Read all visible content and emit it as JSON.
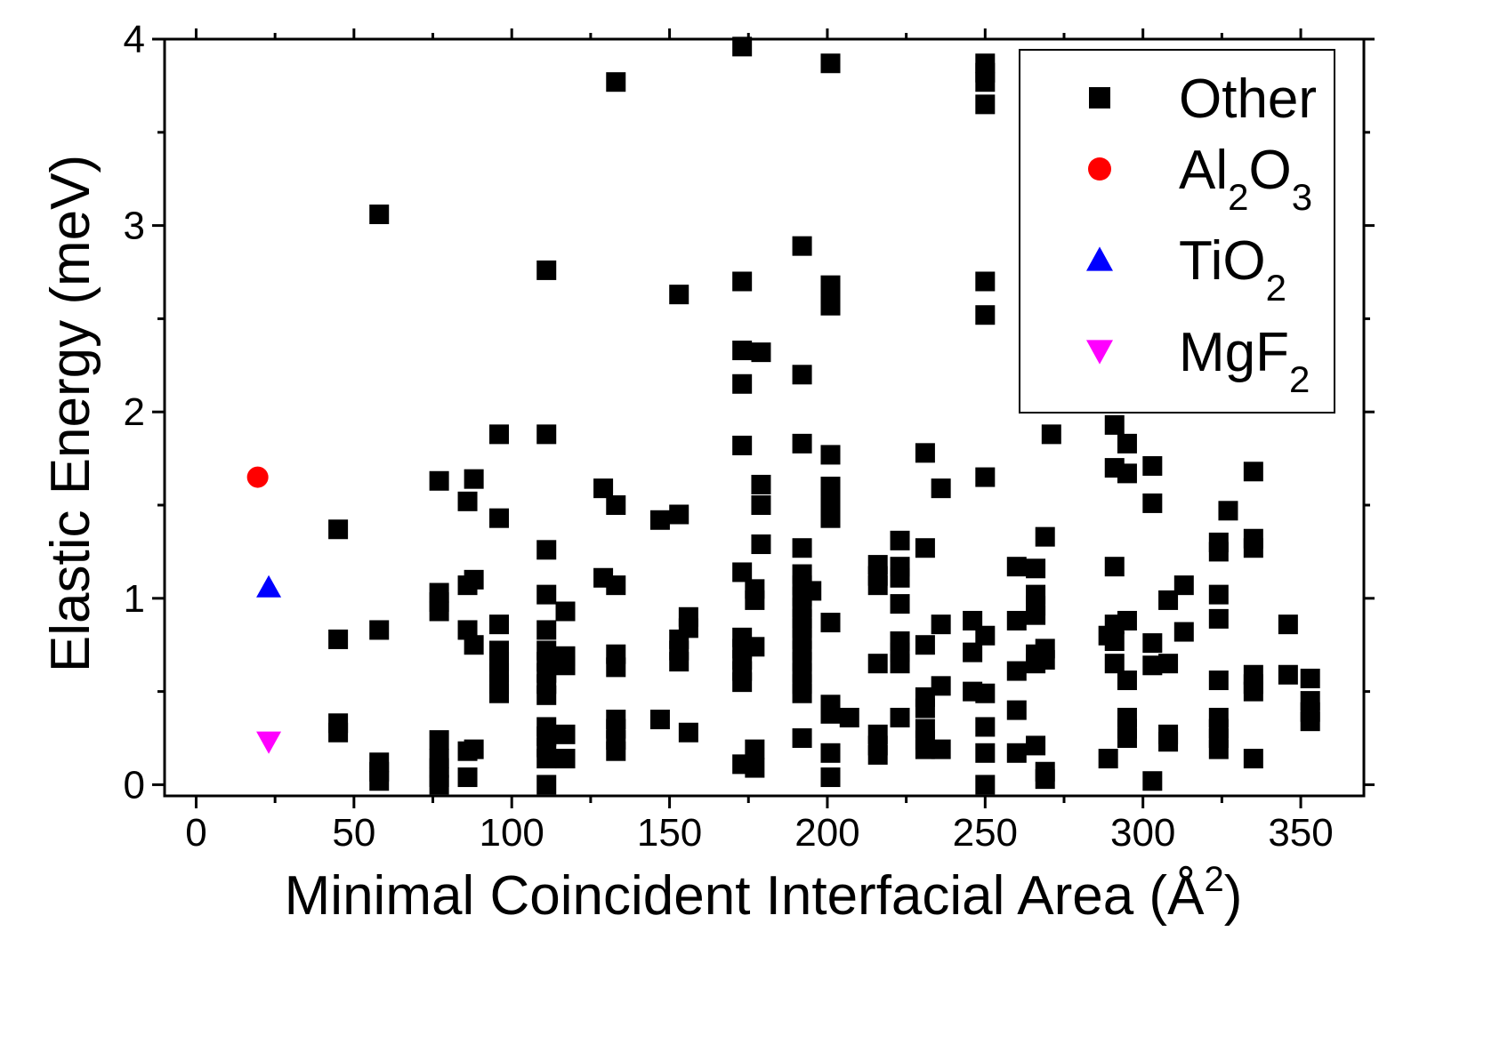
{
  "chart_data": {
    "type": "scatter",
    "xlabel": "Minimal Coincident Interfacial Area (Å",
    "xlabel_sup": "2",
    "xlabel_end": ")",
    "ylabel": "Elastic Energy (meV)",
    "xlim": [
      -10,
      370
    ],
    "ylim": [
      -0.06,
      4
    ],
    "xticks": [
      0,
      50,
      100,
      150,
      200,
      250,
      300,
      350
    ],
    "yticks": [
      0,
      1,
      2,
      3,
      4
    ],
    "grid": false,
    "legend_position": "top-right",
    "series": [
      {
        "name": "Other",
        "marker": "square",
        "color": "#000000",
        "points": [
          [
            45,
            1.37
          ],
          [
            45,
            0.78
          ],
          [
            45,
            0.33
          ],
          [
            45,
            0.28
          ],
          [
            58,
            3.06
          ],
          [
            58,
            0.83
          ],
          [
            58,
            0.12
          ],
          [
            58,
            0.07
          ],
          [
            58,
            0.02
          ],
          [
            77,
            1.63
          ],
          [
            77,
            1.03
          ],
          [
            77,
            0.98
          ],
          [
            77,
            0.93
          ],
          [
            77,
            0.24
          ],
          [
            77,
            0.14
          ],
          [
            77,
            0.09
          ],
          [
            77,
            0.04
          ],
          [
            77,
            0.0
          ],
          [
            86,
            1.52
          ],
          [
            86,
            1.07
          ],
          [
            86,
            0.83
          ],
          [
            86,
            0.18
          ],
          [
            86,
            0.04
          ],
          [
            88,
            1.64
          ],
          [
            88,
            1.1
          ],
          [
            88,
            0.75
          ],
          [
            88,
            0.19
          ],
          [
            96,
            1.88
          ],
          [
            96,
            1.43
          ],
          [
            96,
            0.86
          ],
          [
            96,
            0.72
          ],
          [
            96,
            0.66
          ],
          [
            96,
            0.6
          ],
          [
            96,
            0.54
          ],
          [
            96,
            0.49
          ],
          [
            111,
            2.76
          ],
          [
            111,
            1.88
          ],
          [
            111,
            1.26
          ],
          [
            111,
            1.02
          ],
          [
            111,
            0.83
          ],
          [
            111,
            0.72
          ],
          [
            111,
            0.66
          ],
          [
            111,
            0.6
          ],
          [
            111,
            0.54
          ],
          [
            111,
            0.48
          ],
          [
            111,
            0.31
          ],
          [
            111,
            0.26
          ],
          [
            111,
            0.2
          ],
          [
            111,
            0.14
          ],
          [
            111,
            0.0
          ],
          [
            117,
            0.93
          ],
          [
            117,
            0.69
          ],
          [
            117,
            0.64
          ],
          [
            117,
            0.27
          ],
          [
            117,
            0.14
          ],
          [
            129,
            1.59
          ],
          [
            129,
            1.11
          ],
          [
            133,
            3.77
          ],
          [
            133,
            1.5
          ],
          [
            133,
            1.07
          ],
          [
            133,
            0.7
          ],
          [
            133,
            0.63
          ],
          [
            133,
            0.35
          ],
          [
            133,
            0.3
          ],
          [
            133,
            0.24
          ],
          [
            133,
            0.18
          ],
          [
            147,
            1.42
          ],
          [
            147,
            0.35
          ],
          [
            153,
            2.63
          ],
          [
            153,
            1.45
          ],
          [
            153,
            0.78
          ],
          [
            153,
            0.72
          ],
          [
            153,
            0.66
          ],
          [
            156,
            0.9
          ],
          [
            156,
            0.84
          ],
          [
            156,
            0.28
          ],
          [
            173,
            3.96
          ],
          [
            173,
            2.7
          ],
          [
            173,
            2.33
          ],
          [
            173,
            2.15
          ],
          [
            173,
            1.82
          ],
          [
            173,
            1.14
          ],
          [
            173,
            0.79
          ],
          [
            173,
            0.73
          ],
          [
            173,
            0.67
          ],
          [
            173,
            0.61
          ],
          [
            173,
            0.55
          ],
          [
            173,
            0.11
          ],
          [
            177,
            1.05
          ],
          [
            177,
            0.99
          ],
          [
            177,
            0.74
          ],
          [
            177,
            0.19
          ],
          [
            177,
            0.09
          ],
          [
            179,
            2.32
          ],
          [
            179,
            1.61
          ],
          [
            179,
            1.5
          ],
          [
            179,
            1.29
          ],
          [
            192,
            2.89
          ],
          [
            192,
            2.2
          ],
          [
            192,
            1.83
          ],
          [
            192,
            1.27
          ],
          [
            192,
            1.13
          ],
          [
            192,
            1.07
          ],
          [
            192,
            1.01
          ],
          [
            192,
            0.95
          ],
          [
            192,
            0.89
          ],
          [
            192,
            0.84
          ],
          [
            192,
            0.78
          ],
          [
            192,
            0.72
          ],
          [
            192,
            0.66
          ],
          [
            192,
            0.6
          ],
          [
            192,
            0.54
          ],
          [
            192,
            0.49
          ],
          [
            192,
            0.25
          ],
          [
            195,
            1.04
          ],
          [
            201,
            3.87
          ],
          [
            201,
            2.68
          ],
          [
            201,
            2.63
          ],
          [
            201,
            2.57
          ],
          [
            201,
            1.77
          ],
          [
            201,
            1.6
          ],
          [
            201,
            1.54
          ],
          [
            201,
            1.49
          ],
          [
            201,
            1.43
          ],
          [
            201,
            0.87
          ],
          [
            201,
            0.43
          ],
          [
            201,
            0.38
          ],
          [
            201,
            0.17
          ],
          [
            201,
            0.04
          ],
          [
            207,
            0.36
          ],
          [
            216,
            1.18
          ],
          [
            216,
            1.12
          ],
          [
            216,
            1.07
          ],
          [
            216,
            0.65
          ],
          [
            216,
            0.27
          ],
          [
            216,
            0.21
          ],
          [
            216,
            0.16
          ],
          [
            223,
            1.31
          ],
          [
            223,
            1.17
          ],
          [
            223,
            1.11
          ],
          [
            223,
            0.97
          ],
          [
            223,
            0.77
          ],
          [
            223,
            0.71
          ],
          [
            223,
            0.65
          ],
          [
            223,
            0.36
          ],
          [
            231,
            1.78
          ],
          [
            231,
            1.27
          ],
          [
            231,
            0.75
          ],
          [
            231,
            0.47
          ],
          [
            231,
            0.41
          ],
          [
            231,
            0.3
          ],
          [
            231,
            0.24
          ],
          [
            231,
            0.19
          ],
          [
            236,
            1.59
          ],
          [
            236,
            0.86
          ],
          [
            236,
            0.53
          ],
          [
            236,
            0.19
          ],
          [
            246,
            0.88
          ],
          [
            246,
            0.71
          ],
          [
            246,
            0.5
          ],
          [
            250,
            3.87
          ],
          [
            250,
            3.82
          ],
          [
            250,
            3.77
          ],
          [
            250,
            3.65
          ],
          [
            250,
            2.7
          ],
          [
            250,
            2.52
          ],
          [
            250,
            1.65
          ],
          [
            250,
            0.8
          ],
          [
            250,
            0.49
          ],
          [
            250,
            0.31
          ],
          [
            250,
            0.17
          ],
          [
            250,
            0.0
          ],
          [
            260,
            1.17
          ],
          [
            260,
            0.88
          ],
          [
            260,
            0.61
          ],
          [
            260,
            0.4
          ],
          [
            260,
            0.17
          ],
          [
            266,
            1.16
          ],
          [
            266,
            1.02
          ],
          [
            266,
            0.96
          ],
          [
            266,
            0.91
          ],
          [
            266,
            0.7
          ],
          [
            266,
            0.65
          ],
          [
            266,
            0.21
          ],
          [
            269,
            1.33
          ],
          [
            269,
            0.73
          ],
          [
            269,
            0.67
          ],
          [
            269,
            0.07
          ],
          [
            269,
            0.03
          ],
          [
            271,
            1.88
          ],
          [
            289,
            0.8
          ],
          [
            289,
            0.14
          ],
          [
            291,
            1.93
          ],
          [
            291,
            1.7
          ],
          [
            291,
            1.17
          ],
          [
            291,
            0.86
          ],
          [
            291,
            0.77
          ],
          [
            291,
            0.65
          ],
          [
            295,
            1.83
          ],
          [
            295,
            1.67
          ],
          [
            295,
            0.88
          ],
          [
            295,
            0.56
          ],
          [
            295,
            0.36
          ],
          [
            295,
            0.3
          ],
          [
            295,
            0.25
          ],
          [
            303,
            1.71
          ],
          [
            303,
            1.51
          ],
          [
            303,
            0.76
          ],
          [
            303,
            0.64
          ],
          [
            303,
            0.02
          ],
          [
            308,
            0.99
          ],
          [
            308,
            0.65
          ],
          [
            308,
            0.27
          ],
          [
            308,
            0.23
          ],
          [
            313,
            1.07
          ],
          [
            313,
            0.82
          ],
          [
            324,
            1.3
          ],
          [
            324,
            1.25
          ],
          [
            324,
            1.02
          ],
          [
            324,
            0.89
          ],
          [
            324,
            0.56
          ],
          [
            324,
            0.36
          ],
          [
            324,
            0.3
          ],
          [
            324,
            0.25
          ],
          [
            324,
            0.19
          ],
          [
            327,
            1.47
          ],
          [
            335,
            1.68
          ],
          [
            335,
            1.32
          ],
          [
            335,
            1.27
          ],
          [
            335,
            0.59
          ],
          [
            335,
            0.54
          ],
          [
            335,
            0.5
          ],
          [
            335,
            0.14
          ],
          [
            346,
            0.86
          ],
          [
            346,
            0.59
          ],
          [
            353,
            0.57
          ],
          [
            353,
            0.45
          ],
          [
            353,
            0.39
          ],
          [
            353,
            0.34
          ]
        ]
      },
      {
        "name": "Al2O3",
        "legend_text": "Al",
        "legend_subscripts": [
          "2",
          "3"
        ],
        "legend_mid": "O",
        "marker": "circle",
        "color": "#ff0000",
        "points": [
          [
            19.5,
            1.65
          ]
        ]
      },
      {
        "name": "TiO2",
        "legend_text": "TiO",
        "legend_subscripts": [
          "2"
        ],
        "marker": "triangle-up",
        "color": "#0000ff",
        "points": [
          [
            23,
            1.06
          ]
        ]
      },
      {
        "name": "MgF2",
        "legend_text": "MgF",
        "legend_subscripts": [
          "2"
        ],
        "marker": "triangle-down",
        "color": "#ff00ff",
        "points": [
          [
            23,
            0.23
          ]
        ]
      }
    ]
  }
}
